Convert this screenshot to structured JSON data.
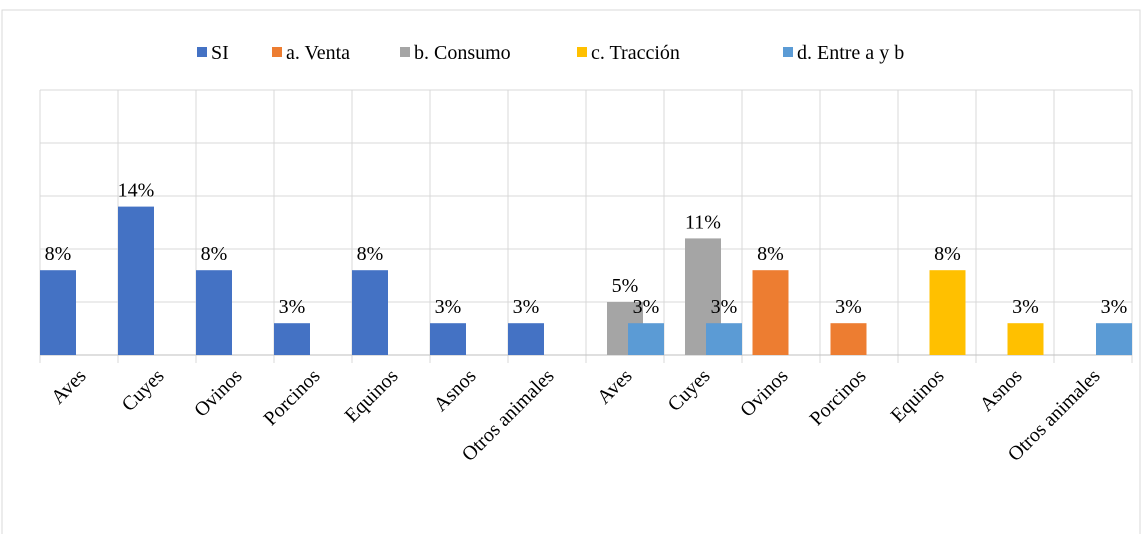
{
  "chart_data": {
    "type": "bar",
    "categories": [
      "Aves",
      "Cuyes",
      "Ovinos",
      "Porcinos",
      "Equinos",
      "Asnos",
      "Otros animales",
      "Aves",
      "Cuyes",
      "Ovinos",
      "Porcinos",
      "Equinos",
      "Asnos",
      "Otros animales"
    ],
    "series": [
      {
        "name": "SI",
        "color": "#4472c4",
        "values": [
          8,
          14,
          8,
          3,
          8,
          3,
          3,
          null,
          null,
          null,
          null,
          null,
          null,
          null
        ],
        "value_labels": [
          "8%",
          "14%",
          "8%",
          "3%",
          "8%",
          "3%",
          "3%",
          null,
          null,
          null,
          null,
          null,
          null,
          null
        ]
      },
      {
        "name": "a. Venta",
        "color": "#ed7d31",
        "values": [
          null,
          null,
          null,
          null,
          null,
          null,
          null,
          null,
          null,
          8,
          3,
          null,
          null,
          null
        ],
        "value_labels": [
          null,
          null,
          null,
          null,
          null,
          null,
          null,
          null,
          null,
          "8%",
          "3%",
          null,
          null,
          null
        ]
      },
      {
        "name": "b. Consumo",
        "color": "#a5a5a5",
        "values": [
          null,
          null,
          null,
          null,
          null,
          null,
          null,
          5,
          11,
          null,
          null,
          null,
          null,
          null
        ],
        "value_labels": [
          null,
          null,
          null,
          null,
          null,
          null,
          null,
          "5%",
          "11%",
          null,
          null,
          null,
          null,
          null
        ]
      },
      {
        "name": "c. Tracción",
        "color": "#ffc000",
        "values": [
          null,
          null,
          null,
          null,
          null,
          null,
          null,
          null,
          null,
          null,
          null,
          8,
          3,
          null
        ],
        "value_labels": [
          null,
          null,
          null,
          null,
          null,
          null,
          null,
          null,
          null,
          null,
          null,
          "8%",
          "3%",
          null
        ]
      },
      {
        "name": "d. Entre a y b",
        "color": "#5b9bd5",
        "values": [
          null,
          null,
          null,
          null,
          null,
          null,
          null,
          3,
          3,
          null,
          null,
          null,
          null,
          3
        ],
        "value_labels": [
          null,
          null,
          null,
          null,
          null,
          null,
          null,
          "3%",
          "3%",
          null,
          null,
          null,
          null,
          "3%"
        ]
      }
    ],
    "ylim": [
      0,
      25
    ],
    "yticks": [
      0,
      5,
      10,
      15,
      20,
      25
    ],
    "grid": true,
    "legend": "top"
  }
}
